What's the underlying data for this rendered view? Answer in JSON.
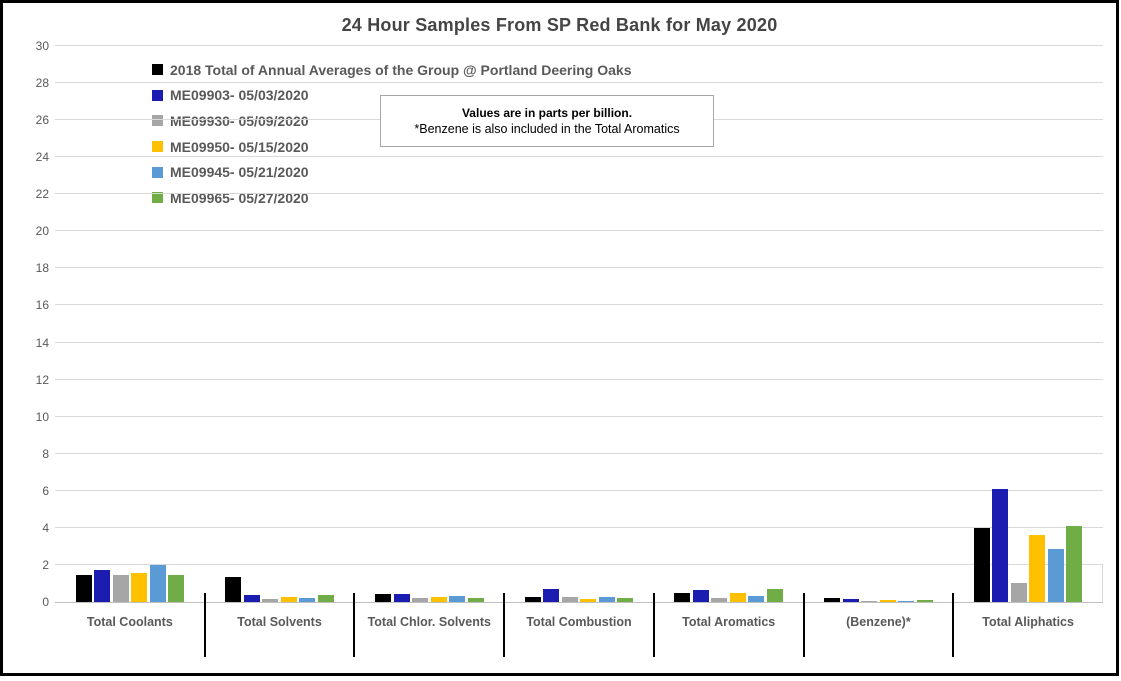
{
  "note": {
    "line1": "Values are in parts per billion.",
    "line2": "*Benzene is also included in the Total Aromatics"
  },
  "chart_data": {
    "type": "bar",
    "title": "24 Hour Samples From SP Red Bank for May 2020",
    "ylabel": "parts per billion",
    "xlabel": "",
    "ylim": [
      0,
      30
    ],
    "ytick_step": 2,
    "grid": true,
    "legend_position": "top-left",
    "categories": [
      "Total Coolants",
      "Total Solvents",
      "Total Chlor. Solvents",
      "Total Combustion",
      "Total Aromatics",
      "(Benzene)*",
      "Total Aliphatics"
    ],
    "series": [
      {
        "name": "2018 Total of Annual Averages of the Group @ Portland Deering Oaks",
        "color": "#000000",
        "values": [
          1.45,
          1.35,
          0.42,
          0.28,
          0.48,
          0.22,
          4.0
        ]
      },
      {
        "name": "ME09903- 05/03/2020",
        "color": "#1A1DB0",
        "values": [
          1.75,
          0.38,
          0.45,
          0.7,
          0.65,
          0.18,
          6.1
        ]
      },
      {
        "name": "ME09930- 05/09/2020",
        "color": "#A6A6A6",
        "values": [
          1.45,
          0.17,
          0.2,
          0.27,
          0.22,
          0.08,
          1.0
        ]
      },
      {
        "name": "ME09950- 05/15/2020",
        "color": "#FFC000",
        "values": [
          1.55,
          0.28,
          0.28,
          0.16,
          0.5,
          0.12,
          3.6
        ]
      },
      {
        "name": "ME09945- 05/21/2020",
        "color": "#5B9BD5",
        "values": [
          2.0,
          0.24,
          0.3,
          0.27,
          0.32,
          0.08,
          2.85
        ]
      },
      {
        "name": "ME09965- 05/27/2020",
        "color": "#70AD47",
        "values": [
          1.45,
          0.4,
          0.22,
          0.22,
          0.72,
          0.12,
          4.1
        ]
      }
    ]
  }
}
